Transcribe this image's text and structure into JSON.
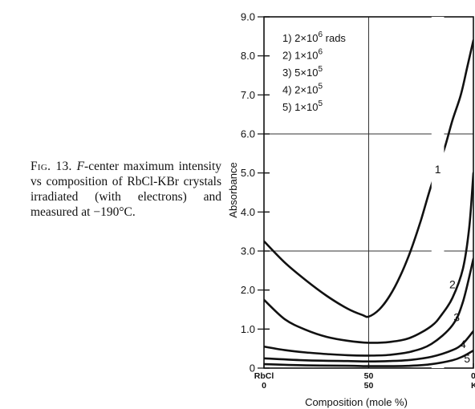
{
  "caption": {
    "fig": "Fig. 13.",
    "italic": "F",
    "rest": "-center maximum intensity vs composition of RbCl-KBr crystals irradiated (with electrons) and measured at −190°C."
  },
  "chart_data": {
    "type": "line",
    "xlabel": "Composition (mole %)",
    "ylabel": "Absorbance",
    "xlim": [
      0,
      100
    ],
    "ylim": [
      0,
      9
    ],
    "yticks": [
      "0",
      "1.0",
      "2.0",
      "3.0",
      "4.0",
      "5.0",
      "6.0",
      "7.0",
      "8.0",
      "9.0"
    ],
    "xticks": [
      {
        "x": 0,
        "top": "RbCl",
        "bottom": "0"
      },
      {
        "x": 50,
        "top": "50",
        "bottom": "50"
      },
      {
        "x": 100,
        "top": "0",
        "bottom": "KBr"
      }
    ],
    "grid": {
      "y": [
        3,
        6
      ],
      "x": [
        50
      ]
    },
    "legend": {
      "placement": "top-left",
      "entries": [
        {
          "num": "1)",
          "value": "2×10",
          "exp": "6",
          "unit": "rads"
        },
        {
          "num": "2)",
          "value": "1×10",
          "exp": "6",
          "unit": ""
        },
        {
          "num": "3)",
          "value": "5×10",
          "exp": "5",
          "unit": ""
        },
        {
          "num": "4)",
          "value": "2×10",
          "exp": "5",
          "unit": ""
        },
        {
          "num": "5)",
          "value": "1×10",
          "exp": "5",
          "unit": ""
        }
      ]
    },
    "series": [
      {
        "label": "1",
        "label_pos": [
          83,
          5.1
        ],
        "gap": [
          80,
          86
        ],
        "x": [
          0,
          10,
          20,
          30,
          40,
          47,
          50,
          55,
          60,
          65,
          70,
          75,
          80,
          86,
          90,
          94,
          97,
          100
        ],
        "y": [
          3.25,
          2.7,
          2.25,
          1.85,
          1.52,
          1.36,
          1.32,
          1.5,
          1.85,
          2.35,
          3.0,
          3.8,
          4.7,
          5.6,
          6.35,
          7.0,
          7.7,
          8.4
        ]
      },
      {
        "label": "2",
        "label_pos": [
          90,
          2.15
        ],
        "x": [
          0,
          10,
          20,
          30,
          40,
          50,
          60,
          70,
          80,
          85,
          90,
          95,
          98,
          100
        ],
        "y": [
          1.75,
          1.25,
          0.98,
          0.8,
          0.7,
          0.65,
          0.67,
          0.78,
          1.08,
          1.38,
          1.8,
          2.55,
          3.6,
          5.0
        ]
      },
      {
        "label": "3",
        "label_pos": [
          92,
          1.3
        ],
        "x": [
          0,
          10,
          20,
          30,
          40,
          50,
          60,
          70,
          80,
          90,
          95,
          100
        ],
        "y": [
          0.55,
          0.46,
          0.4,
          0.36,
          0.33,
          0.32,
          0.34,
          0.42,
          0.62,
          1.1,
          1.7,
          2.8
        ]
      },
      {
        "label": "4",
        "label_pos": [
          95,
          0.62
        ],
        "x": [
          0,
          20,
          40,
          50,
          60,
          70,
          80,
          90,
          95,
          100
        ],
        "y": [
          0.25,
          0.2,
          0.18,
          0.17,
          0.18,
          0.21,
          0.29,
          0.46,
          0.63,
          0.95
        ]
      },
      {
        "label": "5",
        "label_pos": [
          97,
          0.25
        ],
        "x": [
          0,
          20,
          40,
          50,
          60,
          70,
          80,
          90,
          95,
          100
        ],
        "y": [
          0.1,
          0.07,
          0.06,
          0.05,
          0.05,
          0.06,
          0.1,
          0.2,
          0.3,
          0.45
        ]
      }
    ]
  }
}
